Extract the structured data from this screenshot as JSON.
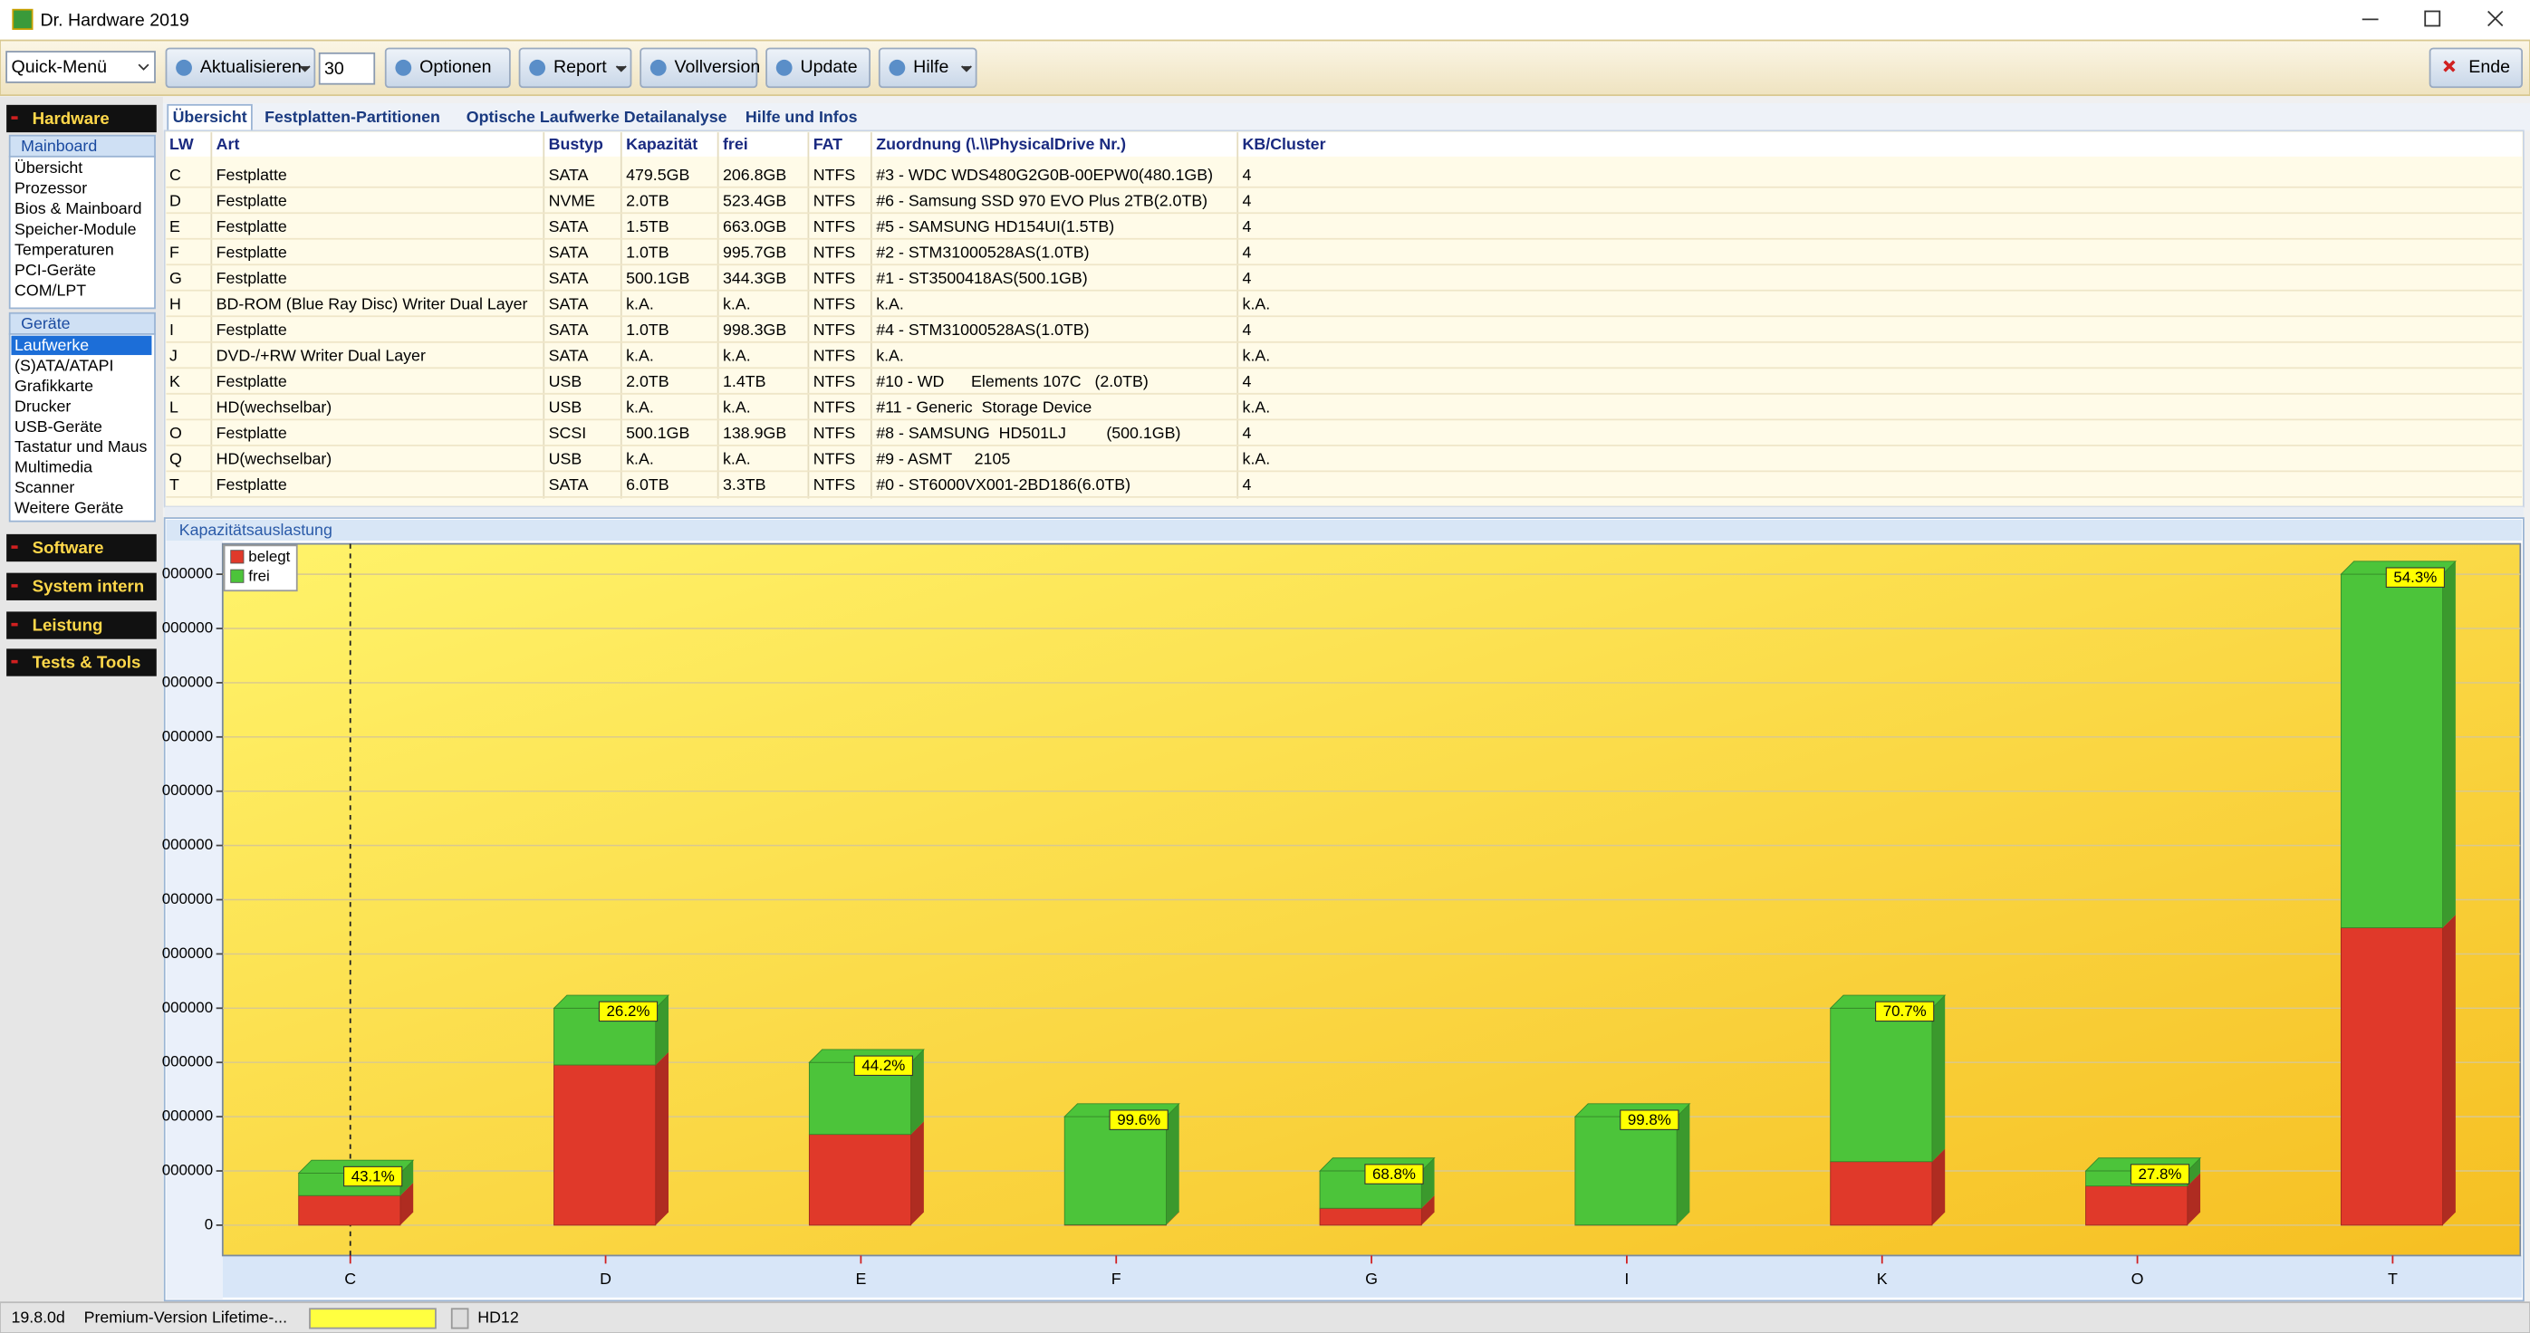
{
  "window": {
    "title": "Dr. Hardware 2019"
  },
  "toolbar": {
    "quick_menu": "Quick-Menü",
    "refresh": "Aktualisieren",
    "interval": "30",
    "buttons": [
      "Optionen",
      "Report",
      "Vollversion",
      "Update",
      "Hilfe"
    ],
    "exit": "Ende"
  },
  "sidebar": {
    "hardware": "Hardware",
    "groups": [
      {
        "title": "Mainboard",
        "items": [
          "Übersicht",
          "Prozessor",
          "Bios & Mainboard",
          "Speicher-Module",
          "Temperaturen",
          "PCI-Geräte",
          "COM/LPT"
        ]
      },
      {
        "title": "Geräte",
        "items": [
          "Laufwerke",
          "(S)ATA/ATAPI",
          "Grafikkarte",
          "Drucker",
          "USB-Geräte",
          "Tastatur und Maus",
          "Multimedia",
          "Scanner",
          "Weitere Geräte"
        ]
      }
    ],
    "sections": [
      "Software",
      "System intern",
      "Leistung",
      "Tests & Tools"
    ]
  },
  "tabs": [
    "Übersicht",
    "Festplatten-Partitionen",
    "Optische Laufwerke Detailanalyse",
    "Hilfe und Infos"
  ],
  "table": {
    "columns": [
      "LW",
      "Art",
      "Bustyp",
      "Kapazität",
      "frei",
      "FAT",
      "Zuordnung (\\.\\\\PhysicalDrive Nr.)",
      "KB/Cluster"
    ],
    "rows": [
      [
        "C",
        "Festplatte",
        "SATA",
        "479.5GB",
        "206.8GB",
        "NTFS",
        "#3 - WDC WDS480G2G0B-00EPW0(480.1GB)",
        "4"
      ],
      [
        "D",
        "Festplatte",
        "NVME",
        "2.0TB",
        "523.4GB",
        "NTFS",
        "#6 - Samsung SSD 970 EVO Plus 2TB(2.0TB)",
        "4"
      ],
      [
        "E",
        "Festplatte",
        "SATA",
        "1.5TB",
        "663.0GB",
        "NTFS",
        "#5 - SAMSUNG HD154UI(1.5TB)",
        "4"
      ],
      [
        "F",
        "Festplatte",
        "SATA",
        "1.0TB",
        "995.7GB",
        "NTFS",
        "#2 - STM31000528AS(1.0TB)",
        "4"
      ],
      [
        "G",
        "Festplatte",
        "SATA",
        "500.1GB",
        "344.3GB",
        "NTFS",
        "#1 - ST3500418AS(500.1GB)",
        "4"
      ],
      [
        "H",
        "BD-ROM (Blue Ray Disc) Writer Dual Layer",
        "SATA",
        "k.A.",
        "k.A.",
        "NTFS",
        "k.A.",
        "k.A."
      ],
      [
        "I",
        "Festplatte",
        "SATA",
        "1.0TB",
        "998.3GB",
        "NTFS",
        "#4 - STM31000528AS(1.0TB)",
        "4"
      ],
      [
        "J",
        "DVD-/+RW Writer Dual Layer",
        "SATA",
        "k.A.",
        "k.A.",
        "NTFS",
        "k.A.",
        "k.A."
      ],
      [
        "K",
        "Festplatte",
        "USB",
        "2.0TB",
        "1.4TB",
        "NTFS",
        "#10 - WD      Elements 107C   (2.0TB)",
        "4"
      ],
      [
        "L",
        "HD(wechselbar)",
        "USB",
        "k.A.",
        "k.A.",
        "NTFS",
        "#11 - Generic  Storage Device",
        "k.A."
      ],
      [
        "O",
        "Festplatte",
        "SCSI",
        "500.1GB",
        "138.9GB",
        "NTFS",
        "#8 - SAMSUNG  HD501LJ         (500.1GB)",
        "4"
      ],
      [
        "Q",
        "HD(wechselbar)",
        "USB",
        "k.A.",
        "k.A.",
        "NTFS",
        "#9 - ASMT     2105",
        "k.A."
      ],
      [
        "T",
        "Festplatte",
        "SATA",
        "6.0TB",
        "3.3TB",
        "NTFS",
        "#0 - ST6000VX001-2BD186(6.0TB)",
        "4"
      ]
    ]
  },
  "chart_data": {
    "type": "bar3d_stacked",
    "title": "Kapazitätsauslastung",
    "categories": [
      "C",
      "D",
      "E",
      "F",
      "G",
      "I",
      "K",
      "O",
      "T"
    ],
    "series": [
      {
        "name": "belegt",
        "color": "#e0392a",
        "values": [
          272700,
          1476600,
          837000,
          4300,
          155800,
          1700,
          586000,
          361200,
          2742000
        ]
      },
      {
        "name": "frei",
        "color": "#4cc43a",
        "values": [
          206800,
          523400,
          663000,
          995700,
          344300,
          998300,
          1414000,
          138900,
          3258000
        ]
      }
    ],
    "percent_labels": [
      "43.1%",
      "26.2%",
      "44.2%",
      "99.6%",
      "68.8%",
      "99.8%",
      "70.7%",
      "27.8%",
      "54.3%"
    ],
    "ylim": [
      -280000,
      6280000
    ],
    "yticks": [
      0,
      {
        "value": 500000,
        "label": "000000"
      },
      {
        "value": 1000000,
        "label": "000000"
      },
      {
        "value": 1500000,
        "label": "000000"
      },
      {
        "value": 2000000,
        "label": "000000"
      },
      {
        "value": 2500000,
        "label": "000000"
      },
      {
        "value": 3000000,
        "label": "000000"
      },
      {
        "value": 3500000,
        "label": "000000"
      },
      {
        "value": 4000000,
        "label": "000000"
      },
      {
        "value": 4500000,
        "label": "000000"
      },
      {
        "value": 5000000,
        "label": "000000"
      },
      {
        "value": 5500000,
        "label": "000000"
      },
      {
        "value": 6000000,
        "label": "000000"
      }
    ],
    "grid": true,
    "legend": "top-left"
  },
  "status": [
    "19.8.0d",
    "Premium-Version Lifetime-...",
    "HD12"
  ]
}
